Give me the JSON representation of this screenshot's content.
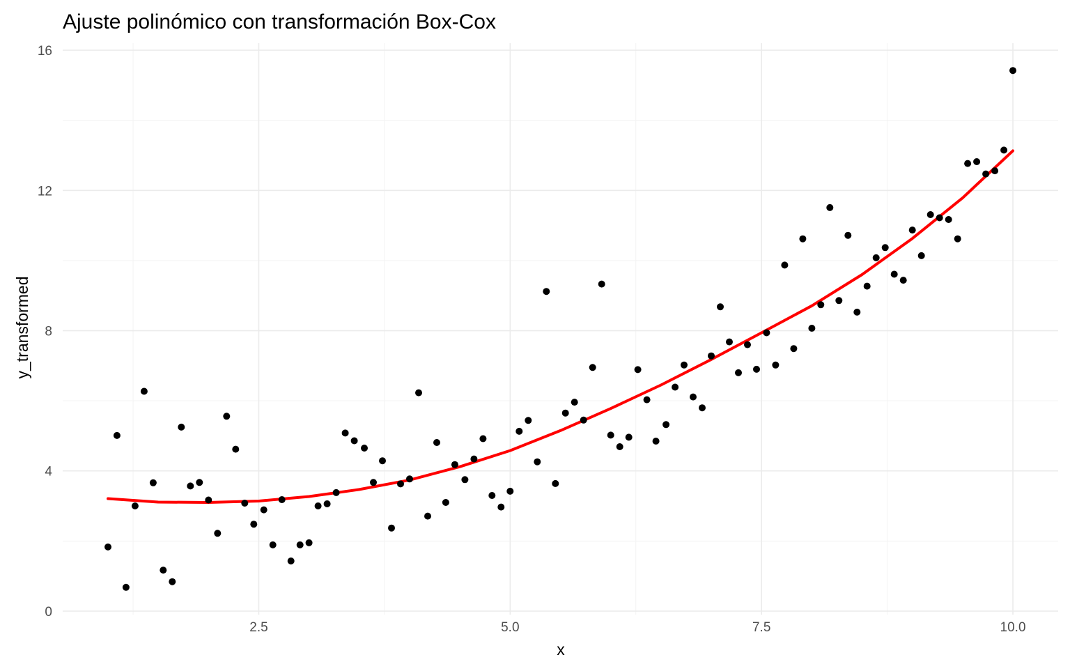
{
  "chart_data": {
    "type": "scatter",
    "title": "Ajuste polinómico con transformación Box-Cox",
    "xlabel": "x",
    "ylabel": "y_transformed",
    "xlim": [
      0.55,
      10.45
    ],
    "ylim": [
      -0.1,
      16.2
    ],
    "x_ticks": [
      2.5,
      5.0,
      7.5,
      10.0
    ],
    "x_tick_labels": [
      "2.5",
      "5.0",
      "7.5",
      "10.0"
    ],
    "y_ticks": [
      0,
      4,
      8,
      12,
      16
    ],
    "y_tick_labels": [
      "0",
      "4",
      "8",
      "12",
      "16"
    ],
    "grid": true,
    "legend": "none",
    "point_color": "#000000",
    "fit_color": "#ff0000",
    "points": [
      [
        1.0,
        1.83
      ],
      [
        1.09,
        5.01
      ],
      [
        1.18,
        0.68
      ],
      [
        1.27,
        3.0
      ],
      [
        1.36,
        6.27
      ],
      [
        1.45,
        3.66
      ],
      [
        1.55,
        1.17
      ],
      [
        1.64,
        0.84
      ],
      [
        1.73,
        5.25
      ],
      [
        1.82,
        3.57
      ],
      [
        1.91,
        3.67
      ],
      [
        2.0,
        3.17
      ],
      [
        2.09,
        2.22
      ],
      [
        2.18,
        5.56
      ],
      [
        2.27,
        4.62
      ],
      [
        2.36,
        3.08
      ],
      [
        2.45,
        2.48
      ],
      [
        2.55,
        2.89
      ],
      [
        2.64,
        1.89
      ],
      [
        2.73,
        3.18
      ],
      [
        2.82,
        1.43
      ],
      [
        2.91,
        1.89
      ],
      [
        3.0,
        1.95
      ],
      [
        3.09,
        3.0
      ],
      [
        3.18,
        3.06
      ],
      [
        3.27,
        3.38
      ],
      [
        3.36,
        5.08
      ],
      [
        3.45,
        4.86
      ],
      [
        3.55,
        4.65
      ],
      [
        3.64,
        3.67
      ],
      [
        3.73,
        4.29
      ],
      [
        3.82,
        2.37
      ],
      [
        3.91,
        3.63
      ],
      [
        4.0,
        3.77
      ],
      [
        4.09,
        6.23
      ],
      [
        4.18,
        2.71
      ],
      [
        4.27,
        4.81
      ],
      [
        4.36,
        3.1
      ],
      [
        4.45,
        4.18
      ],
      [
        4.55,
        3.75
      ],
      [
        4.64,
        4.34
      ],
      [
        4.73,
        4.92
      ],
      [
        4.82,
        3.3
      ],
      [
        4.91,
        2.97
      ],
      [
        5.0,
        3.42
      ],
      [
        5.09,
        5.13
      ],
      [
        5.18,
        5.44
      ],
      [
        5.27,
        4.26
      ],
      [
        5.36,
        9.12
      ],
      [
        5.45,
        3.64
      ],
      [
        5.55,
        5.65
      ],
      [
        5.64,
        5.96
      ],
      [
        5.73,
        5.45
      ],
      [
        5.82,
        6.95
      ],
      [
        5.91,
        9.33
      ],
      [
        6.0,
        5.02
      ],
      [
        6.09,
        4.69
      ],
      [
        6.18,
        4.96
      ],
      [
        6.27,
        6.89
      ],
      [
        6.36,
        6.03
      ],
      [
        6.45,
        4.85
      ],
      [
        6.55,
        5.32
      ],
      [
        6.64,
        6.39
      ],
      [
        6.73,
        7.02
      ],
      [
        6.82,
        6.11
      ],
      [
        6.91,
        5.8
      ],
      [
        7.0,
        7.28
      ],
      [
        7.09,
        8.68
      ],
      [
        7.18,
        7.68
      ],
      [
        7.27,
        6.8
      ],
      [
        7.36,
        7.6
      ],
      [
        7.45,
        6.9
      ],
      [
        7.55,
        7.94
      ],
      [
        7.64,
        7.02
      ],
      [
        7.73,
        9.87
      ],
      [
        7.82,
        7.49
      ],
      [
        7.91,
        10.62
      ],
      [
        8.0,
        8.07
      ],
      [
        8.09,
        8.74
      ],
      [
        8.18,
        11.51
      ],
      [
        8.27,
        8.86
      ],
      [
        8.36,
        10.72
      ],
      [
        8.45,
        8.53
      ],
      [
        8.55,
        9.27
      ],
      [
        8.64,
        10.08
      ],
      [
        8.73,
        10.37
      ],
      [
        8.82,
        9.61
      ],
      [
        8.91,
        9.44
      ],
      [
        9.0,
        10.87
      ],
      [
        9.09,
        10.14
      ],
      [
        9.18,
        11.31
      ],
      [
        9.27,
        11.22
      ],
      [
        9.36,
        11.17
      ],
      [
        9.45,
        10.62
      ],
      [
        9.55,
        12.77
      ],
      [
        9.64,
        12.82
      ],
      [
        9.73,
        12.47
      ],
      [
        9.82,
        12.56
      ],
      [
        9.91,
        13.15
      ],
      [
        10.0,
        15.42
      ]
    ],
    "fit_curve": [
      [
        1.0,
        3.21
      ],
      [
        1.5,
        3.11
      ],
      [
        2.0,
        3.1
      ],
      [
        2.5,
        3.14
      ],
      [
        3.0,
        3.27
      ],
      [
        3.5,
        3.47
      ],
      [
        4.0,
        3.74
      ],
      [
        4.5,
        4.12
      ],
      [
        5.0,
        4.58
      ],
      [
        5.5,
        5.15
      ],
      [
        6.0,
        5.78
      ],
      [
        6.5,
        6.45
      ],
      [
        7.0,
        7.18
      ],
      [
        7.5,
        7.94
      ],
      [
        8.0,
        8.71
      ],
      [
        8.5,
        9.6
      ],
      [
        9.0,
        10.63
      ],
      [
        9.5,
        11.79
      ],
      [
        10.0,
        13.13
      ]
    ]
  }
}
